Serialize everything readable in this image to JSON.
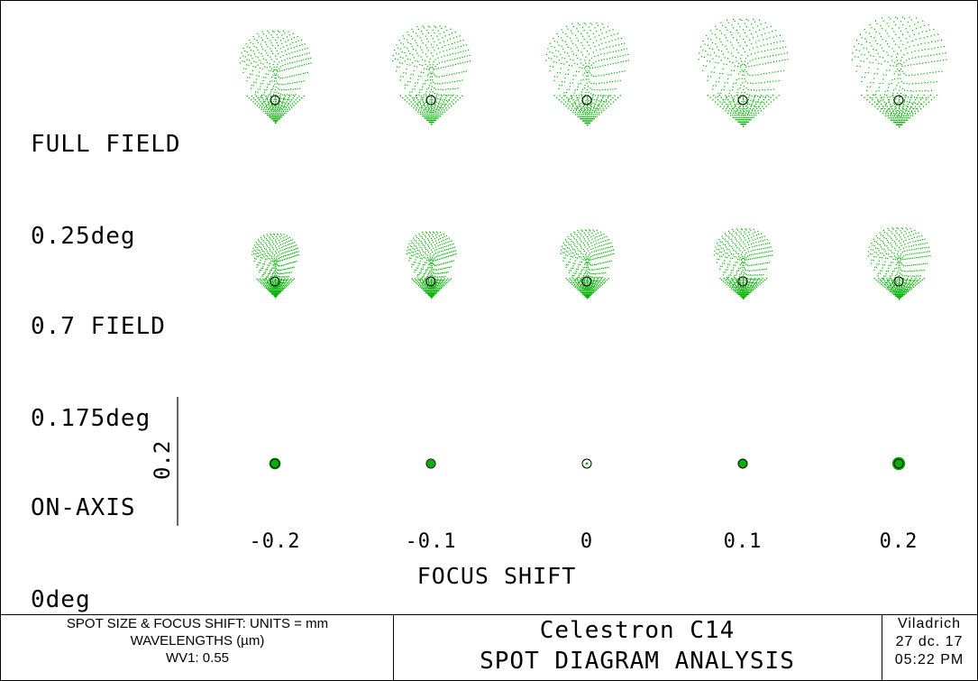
{
  "chart_data": {
    "type": "scatter",
    "title": "Celestron C14",
    "subtitle": "SPOT DIAGRAM ANALYSIS",
    "xlabel": "FOCUS SHIFT",
    "focus_shifts": [
      -0.2,
      -0.1,
      0,
      0.1,
      0.2
    ],
    "x_tick_labels": [
      "-0.2",
      "-0.1",
      "0",
      "0.1",
      "0.2"
    ],
    "scale_bar_label": "0.2",
    "scale_bar_value": 0.2,
    "spot_color": "#00b000",
    "airy_circle_color": "#000000",
    "fields": [
      {
        "name": "FULL FIELD",
        "angle_label": "0.25deg",
        "angle_deg": 0.25,
        "spot_extent_mm": [
          {
            "width": 0.11,
            "height": 0.142
          },
          {
            "width": 0.12,
            "height": 0.152
          },
          {
            "width": 0.128,
            "height": 0.158
          },
          {
            "width": 0.138,
            "height": 0.166
          },
          {
            "width": 0.146,
            "height": 0.17
          }
        ]
      },
      {
        "name": "0.7 FIELD",
        "angle_label": "0.175deg",
        "angle_deg": 0.175,
        "spot_extent_mm": [
          {
            "width": 0.072,
            "height": 0.098
          },
          {
            "width": 0.076,
            "height": 0.102
          },
          {
            "width": 0.082,
            "height": 0.106
          },
          {
            "width": 0.09,
            "height": 0.108
          },
          {
            "width": 0.096,
            "height": 0.11
          }
        ]
      },
      {
        "name": "ON-AXIS",
        "angle_label": "0deg",
        "angle_deg": 0,
        "spot_extent_mm": [
          {
            "width": 0.018,
            "height": 0.018
          },
          {
            "width": 0.012,
            "height": 0.012
          },
          {
            "width": 0.004,
            "height": 0.004
          },
          {
            "width": 0.014,
            "height": 0.014
          },
          {
            "width": 0.02,
            "height": 0.02
          }
        ]
      }
    ]
  },
  "footer": {
    "units_line": "SPOT SIZE & FOCUS SHIFT: UNITS = mm",
    "wavelengths_line": "WAVELENGTHS (µm)",
    "wavelength_entry": "WV1: 0.55",
    "title": "Celestron C14",
    "subtitle": "SPOT DIAGRAM ANALYSIS",
    "author": "Viladrich",
    "date": "27 dc. 17",
    "time": "05:22 PM"
  }
}
